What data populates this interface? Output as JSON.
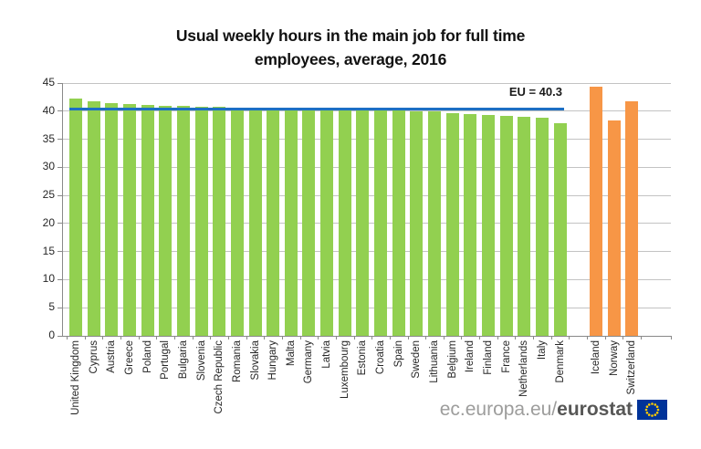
{
  "page": {
    "title_lines": [
      "Usual weekly hours in the main job for full time",
      "employees, average, 2016"
    ]
  },
  "chart_data": {
    "type": "bar",
    "title": "Usual weekly hours in the main job for full time employees, average, 2016",
    "xlabel": "",
    "ylabel": "",
    "ylim": [
      0,
      45
    ],
    "yticks": [
      0,
      5,
      10,
      15,
      20,
      25,
      30,
      35,
      40,
      45
    ],
    "grid": true,
    "legend": "none",
    "reference_line": {
      "label": "EU = 40.3",
      "value": 40.3,
      "color": "#1d6fc4"
    },
    "group_colors": {
      "eu": "#92d050",
      "non-eu": "#f79646"
    },
    "gap_before": "Iceland",
    "bars": [
      {
        "label": "United Kingdom",
        "value": 42.3,
        "group": "eu"
      },
      {
        "label": "Cyprus",
        "value": 41.7,
        "group": "eu"
      },
      {
        "label": "Austria",
        "value": 41.4,
        "group": "eu"
      },
      {
        "label": "Greece",
        "value": 41.2,
        "group": "eu"
      },
      {
        "label": "Poland",
        "value": 41.1,
        "group": "eu"
      },
      {
        "label": "Portugal",
        "value": 41.0,
        "group": "eu"
      },
      {
        "label": "Bulgaria",
        "value": 40.9,
        "group": "eu"
      },
      {
        "label": "Slovenia",
        "value": 40.8,
        "group": "eu"
      },
      {
        "label": "Czech Republic",
        "value": 40.7,
        "group": "eu"
      },
      {
        "label": "Romania",
        "value": 40.6,
        "group": "eu"
      },
      {
        "label": "Slovakia",
        "value": 40.6,
        "group": "eu"
      },
      {
        "label": "Hungary",
        "value": 40.5,
        "group": "eu"
      },
      {
        "label": "Malta",
        "value": 40.5,
        "group": "eu"
      },
      {
        "label": "Germany",
        "value": 40.5,
        "group": "eu"
      },
      {
        "label": "Latvia",
        "value": 40.4,
        "group": "eu"
      },
      {
        "label": "Luxembourg",
        "value": 40.4,
        "group": "eu"
      },
      {
        "label": "Estonia",
        "value": 40.3,
        "group": "eu"
      },
      {
        "label": "Croatia",
        "value": 40.3,
        "group": "eu"
      },
      {
        "label": "Spain",
        "value": 40.2,
        "group": "eu"
      },
      {
        "label": "Sweden",
        "value": 40.0,
        "group": "eu"
      },
      {
        "label": "Lithuania",
        "value": 39.9,
        "group": "eu"
      },
      {
        "label": "Belgium",
        "value": 39.7,
        "group": "eu"
      },
      {
        "label": "Ireland",
        "value": 39.4,
        "group": "eu"
      },
      {
        "label": "Finland",
        "value": 39.3,
        "group": "eu"
      },
      {
        "label": "France",
        "value": 39.2,
        "group": "eu"
      },
      {
        "label": "Netherlands",
        "value": 39.0,
        "group": "eu"
      },
      {
        "label": "Italy",
        "value": 38.8,
        "group": "eu"
      },
      {
        "label": "Denmark",
        "value": 37.8,
        "group": "eu"
      },
      {
        "label": "Iceland",
        "value": 44.4,
        "group": "non-eu"
      },
      {
        "label": "Norway",
        "value": 38.4,
        "group": "non-eu"
      },
      {
        "label": "Switzerland",
        "value": 41.8,
        "group": "non-eu"
      }
    ],
    "style": {
      "grid_color": "#c3c3c3",
      "axis_color": "#898989",
      "text_color": "#262626"
    }
  },
  "footer": {
    "url_regular": "ec.europa.eu/",
    "url_bold": "eurostat",
    "flag_colors": {
      "background": "#003399",
      "stars": "#ffcc00"
    }
  }
}
